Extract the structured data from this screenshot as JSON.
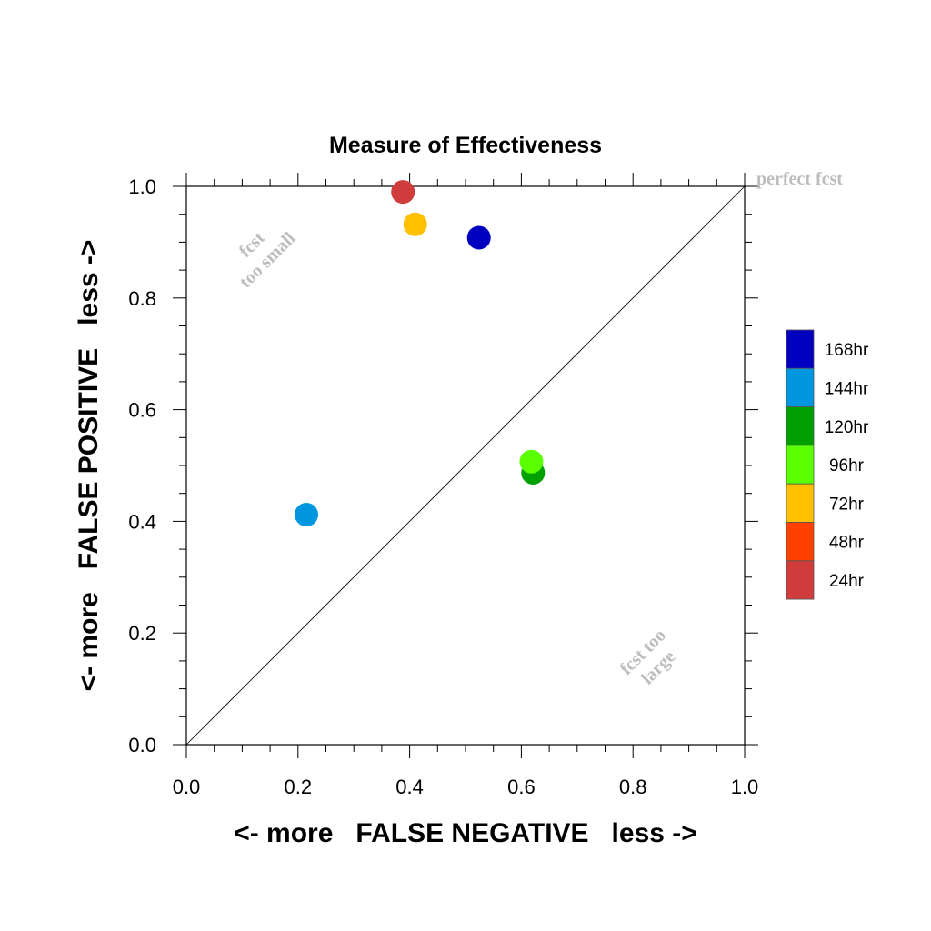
{
  "chart_data": {
    "type": "scatter",
    "title": "Measure of Effectiveness",
    "xlabel": "<- more   FALSE NEGATIVE   less ->",
    "ylabel": "<- more   FALSE POSITIVE   less ->",
    "xlim": [
      0.0,
      1.0
    ],
    "ylim": [
      0.0,
      1.0
    ],
    "xticks": [
      "0.0",
      "0.2",
      "0.4",
      "0.6",
      "0.8",
      "1.0"
    ],
    "yticks": [
      "0.0",
      "0.2",
      "0.4",
      "0.6",
      "0.8",
      "1.0"
    ],
    "grid": false,
    "legend_position": "right",
    "reference_line": {
      "from": [
        0,
        0
      ],
      "to": [
        1,
        1
      ]
    },
    "annotations": {
      "perfect": "perfect fcst",
      "too_small": [
        "fcst",
        "too small"
      ],
      "too_large": [
        "fcst too",
        "large"
      ]
    },
    "series": [
      {
        "name": "168hr",
        "color": "#0000c0",
        "x": 0.524,
        "y": 0.908
      },
      {
        "name": "144hr",
        "color": "#0096e0",
        "x": 0.215,
        "y": 0.412
      },
      {
        "name": "120hr",
        "color": "#00a000",
        "x": 0.621,
        "y": 0.487
      },
      {
        "name": "96hr",
        "color": "#5aff00",
        "x": 0.618,
        "y": 0.507
      },
      {
        "name": "72hr",
        "color": "#ffc000",
        "x": 0.41,
        "y": 0.932
      },
      {
        "name": "48hr",
        "color": "#ff4000",
        "x": null,
        "y": null
      },
      {
        "name": "24hr",
        "color": "#d03c3c",
        "x": 0.388,
        "y": 0.99
      }
    ]
  }
}
